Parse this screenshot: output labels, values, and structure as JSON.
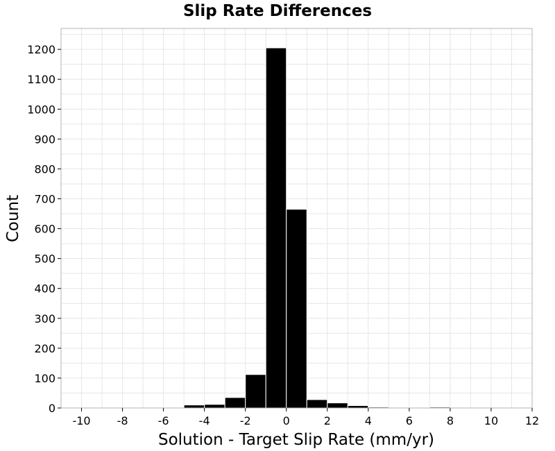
{
  "chart_data": {
    "type": "bar",
    "title": "Slip Rate Differences",
    "xlabel": "Solution - Target Slip Rate (mm/yr)",
    "ylabel": "Count",
    "xlim": [
      -11,
      12
    ],
    "ylim": [
      0,
      1270
    ],
    "x_ticks": [
      -10,
      -8,
      -6,
      -4,
      -2,
      0,
      2,
      4,
      6,
      8,
      10,
      12
    ],
    "y_ticks": [
      0,
      100,
      200,
      300,
      400,
      500,
      600,
      700,
      800,
      900,
      1000,
      1100,
      1200
    ],
    "bin_width": 1,
    "bins": [
      {
        "x": -5.5,
        "value": 2
      },
      {
        "x": -4.5,
        "value": 10
      },
      {
        "x": -3.5,
        "value": 12
      },
      {
        "x": -2.5,
        "value": 35
      },
      {
        "x": -1.5,
        "value": 112
      },
      {
        "x": -0.5,
        "value": 1205
      },
      {
        "x": 0.5,
        "value": 665
      },
      {
        "x": 1.5,
        "value": 28
      },
      {
        "x": 2.5,
        "value": 17
      },
      {
        "x": 3.5,
        "value": 8
      },
      {
        "x": 4.5,
        "value": 3
      },
      {
        "x": 5.5,
        "value": 2
      },
      {
        "x": 7.5,
        "value": 3
      }
    ],
    "grid": true,
    "bar_color": "#000000",
    "bar_edge_color": "#ffffff"
  }
}
